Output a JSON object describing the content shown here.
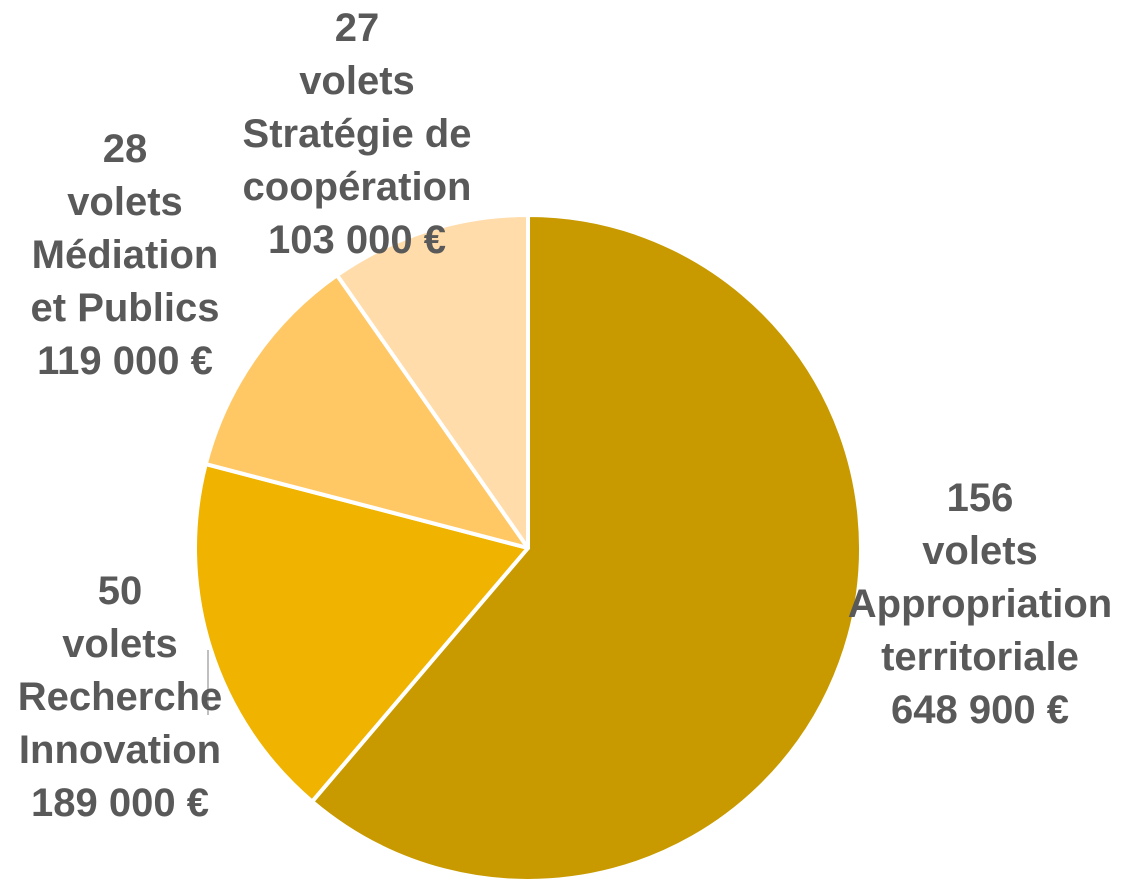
{
  "chart_data": {
    "type": "pie",
    "title": "",
    "slices": [
      {
        "count": 156,
        "count_unit": "volets",
        "category": "Appropriation territoriale",
        "amount": 648900,
        "amount_label": "648 900 €",
        "color": "#C89A00",
        "label_lines": [
          "156",
          "volets",
          "Appropriation",
          "territoriale",
          "648 900 €"
        ]
      },
      {
        "count": 50,
        "count_unit": "volets",
        "category": "Recherche Innovation",
        "amount": 189000,
        "amount_label": "189 000 €",
        "color": "#EFB300",
        "label_lines": [
          "50",
          "volets",
          "Recherche",
          "Innovation",
          "189 000 €"
        ]
      },
      {
        "count": 28,
        "count_unit": "volets",
        "category": "Médiation et Publics",
        "amount": 119000,
        "amount_label": "119 000 €",
        "color": "#FFC864",
        "label_lines": [
          "28",
          "volets",
          "Médiation",
          "et Publics",
          "119 000 €"
        ]
      },
      {
        "count": 27,
        "count_unit": "volets",
        "category": "Stratégie de coopération",
        "amount": 103000,
        "amount_label": "103 000 €",
        "color": "#FFDCAA",
        "label_lines": [
          "27",
          "volets",
          "Stratégie de",
          "coopération",
          "103 000 €"
        ]
      }
    ]
  }
}
